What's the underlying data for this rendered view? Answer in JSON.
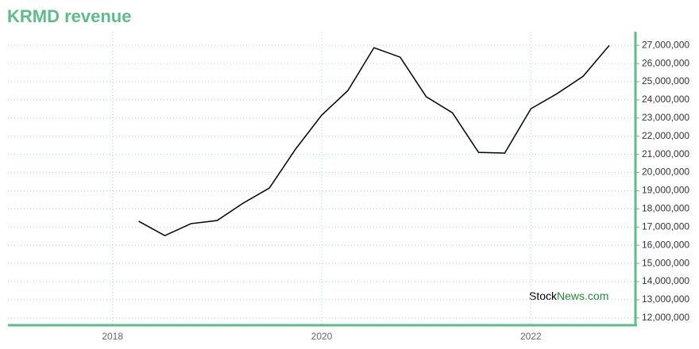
{
  "chart_data": {
    "type": "line",
    "title": "KRMD revenue",
    "x": [
      2018.25,
      2018.5,
      2018.75,
      2019,
      2019.25,
      2019.5,
      2019.75,
      2020,
      2020.25,
      2020.5,
      2020.75,
      2021,
      2021.25,
      2021.5,
      2021.75,
      2022,
      2022.25,
      2022.5,
      2022.75
    ],
    "values": [
      17320000,
      16530000,
      17190000,
      17360000,
      18320000,
      19150000,
      21290000,
      23160000,
      24510000,
      26870000,
      26350000,
      24170000,
      23290000,
      21110000,
      21070000,
      23510000,
      24340000,
      25300000,
      27000000
    ],
    "color": "#000000",
    "xlim": [
      2017,
      2023
    ],
    "xticks": [
      2018,
      2020,
      2022
    ],
    "ylim": [
      11600000,
      27750000
    ],
    "yticks": [
      {
        "value": 12000000,
        "label": "12,000,000"
      },
      {
        "value": 13000000,
        "label": "13,000,000"
      },
      {
        "value": 14000000,
        "label": "14,000,000"
      },
      {
        "value": 15000000,
        "label": "15,000,000"
      },
      {
        "value": 16000000,
        "label": "16,000,000"
      },
      {
        "value": 17000000,
        "label": "17,000,000"
      },
      {
        "value": 18000000,
        "label": "18,000,000"
      },
      {
        "value": 19000000,
        "label": "19,000,000"
      },
      {
        "value": 20000000,
        "label": "20,000,000"
      },
      {
        "value": 21000000,
        "label": "21,000,000"
      },
      {
        "value": 22000000,
        "label": "22,000,000"
      },
      {
        "value": 23000000,
        "label": "23,000,000"
      },
      {
        "value": 24000000,
        "label": "24,000,000"
      },
      {
        "value": 25000000,
        "label": "25,000,000"
      },
      {
        "value": 26000000,
        "label": "26,000,000"
      },
      {
        "value": 27000000,
        "label": "27,000,000"
      }
    ],
    "grid": true,
    "watermark": [
      "Stock",
      "News.com"
    ]
  }
}
